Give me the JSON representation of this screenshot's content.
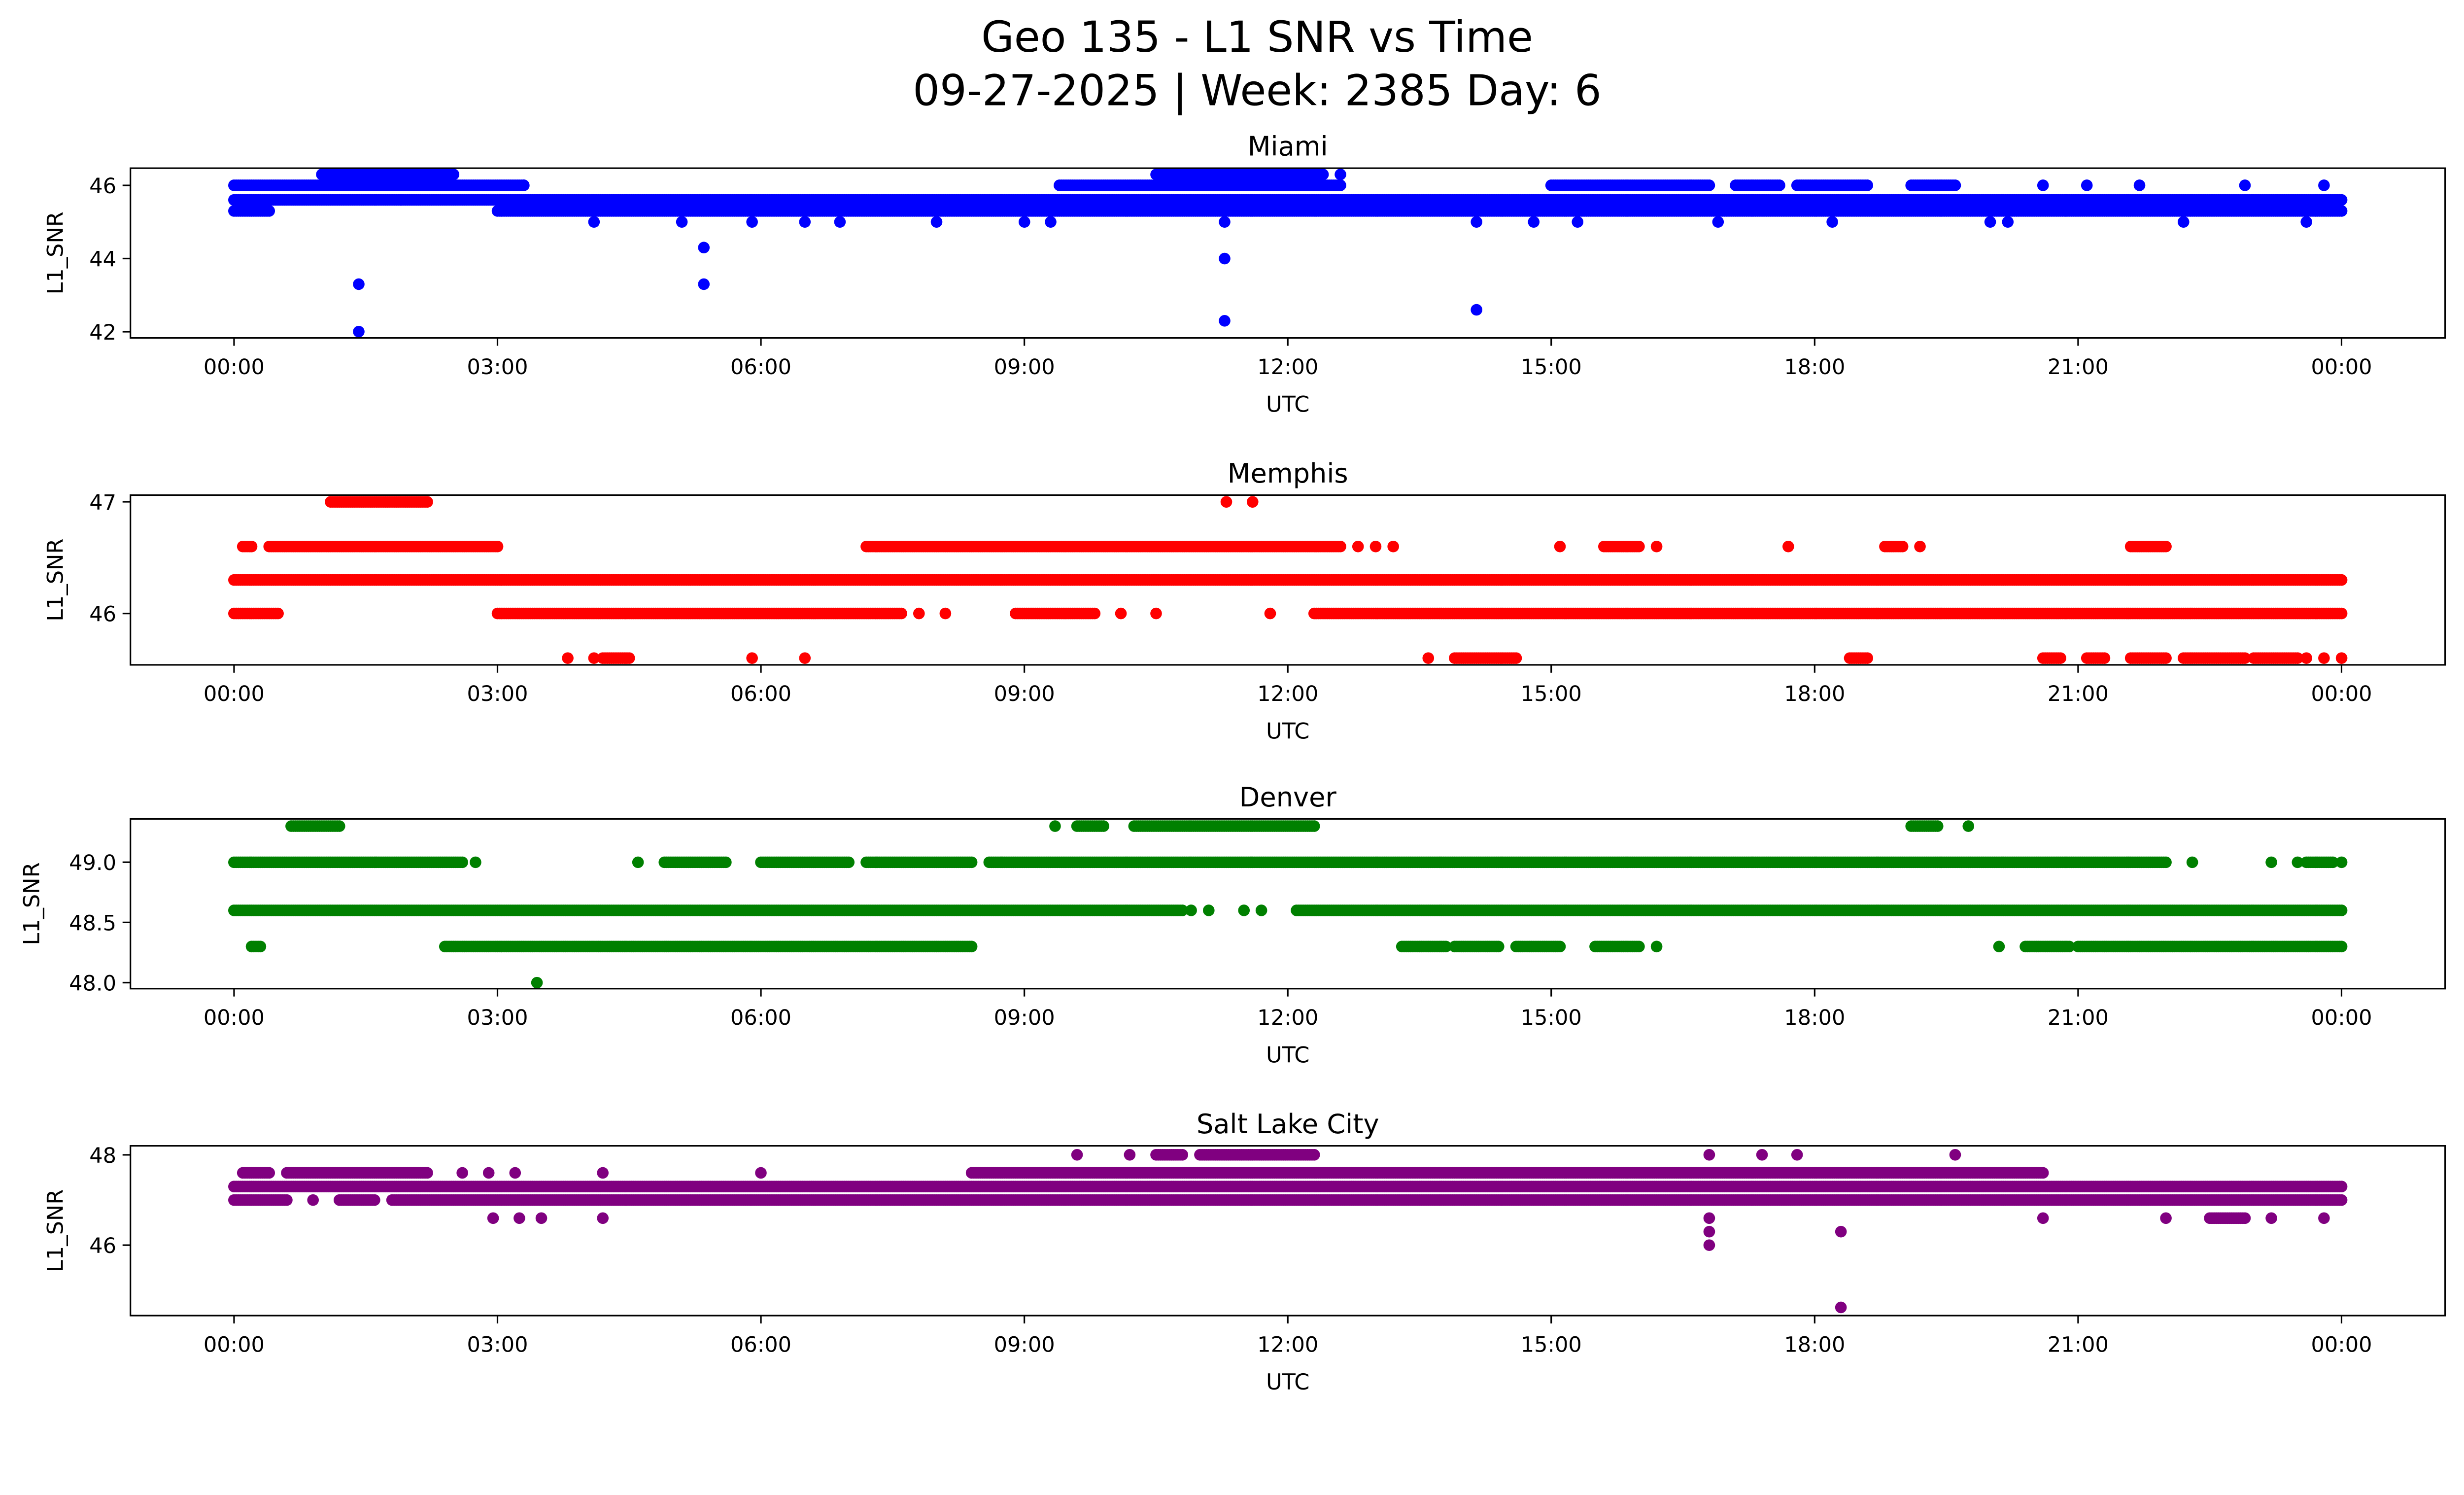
{
  "title_line1": "Geo 135 - L1 SNR vs Time",
  "title_line2": "09-27-2025 | Week: 2385 Day: 6",
  "chart_data": [
    {
      "type": "scatter",
      "title": "Miami",
      "xlabel": "UTC",
      "ylabel": "L1_SNR",
      "color": "#0000ff",
      "xlim_hours": [
        -1.18,
        25.18
      ],
      "ylim": [
        41.83,
        46.47
      ],
      "yticks": [
        42,
        44,
        46
      ],
      "ytick_labels": [
        "42",
        "44",
        "46"
      ],
      "xticks_hours": [
        0,
        3,
        6,
        9,
        12,
        15,
        18,
        21,
        24
      ],
      "xtick_labels": [
        "00:00",
        "03:00",
        "06:00",
        "09:00",
        "12:00",
        "15:00",
        "18:00",
        "21:00",
        "00:00"
      ],
      "runs": [
        [
          0,
          0.4,
          45.3
        ],
        [
          3.0,
          24,
          45.3
        ],
        [
          0,
          24,
          45.6
        ],
        [
          0,
          3.3,
          46.0
        ],
        [
          9.4,
          12.6,
          46.0
        ],
        [
          15.0,
          16.8,
          46.0
        ],
        [
          17.1,
          17.6,
          46.0
        ],
        [
          17.8,
          18.6,
          46.0
        ],
        [
          19.1,
          19.6,
          46.0
        ],
        [
          1.0,
          2.5,
          46.3
        ],
        [
          10.5,
          12.4,
          46.3
        ]
      ],
      "points": [
        [
          1.42,
          43.3
        ],
        [
          1.42,
          42.0
        ],
        [
          5.35,
          44.3
        ],
        [
          5.35,
          43.3
        ],
        [
          11.28,
          45.0
        ],
        [
          11.28,
          44.0
        ],
        [
          11.28,
          42.3
        ],
        [
          14.15,
          42.6
        ],
        [
          4.1,
          45.0
        ],
        [
          5.1,
          45.0
        ],
        [
          5.9,
          45.0
        ],
        [
          6.5,
          45.0
        ],
        [
          6.9,
          45.0
        ],
        [
          8.0,
          45.0
        ],
        [
          9.0,
          45.0
        ],
        [
          9.3,
          45.0
        ],
        [
          14.15,
          45.0
        ],
        [
          14.8,
          45.0
        ],
        [
          15.3,
          45.0
        ],
        [
          16.9,
          45.0
        ],
        [
          18.2,
          45.0
        ],
        [
          20.0,
          45.0
        ],
        [
          20.2,
          45.0
        ],
        [
          22.2,
          45.0
        ],
        [
          23.6,
          45.0
        ],
        [
          1.9,
          45.6
        ],
        [
          3.3,
          46.0
        ],
        [
          20.6,
          46.0
        ],
        [
          21.1,
          46.0
        ],
        [
          21.7,
          46.0
        ],
        [
          22.9,
          46.0
        ],
        [
          23.8,
          46.0
        ],
        [
          12.6,
          46.3
        ]
      ]
    },
    {
      "type": "scatter",
      "title": "Memphis",
      "xlabel": "UTC",
      "ylabel": "L1_SNR",
      "color": "#ff0000",
      "xlim_hours": [
        -1.18,
        25.18
      ],
      "ylim": [
        45.54,
        47.06
      ],
      "yticks": [
        46,
        47
      ],
      "ytick_labels": [
        "46",
        "47"
      ],
      "xticks_hours": [
        0,
        3,
        6,
        9,
        12,
        15,
        18,
        21,
        24
      ],
      "xtick_labels": [
        "00:00",
        "03:00",
        "06:00",
        "09:00",
        "12:00",
        "15:00",
        "18:00",
        "21:00",
        "00:00"
      ],
      "runs": [
        [
          1.1,
          2.2,
          47.0
        ],
        [
          0.1,
          0.2,
          46.6
        ],
        [
          0.4,
          3.0,
          46.6
        ],
        [
          7.2,
          12.6,
          46.6
        ],
        [
          15.6,
          16.0,
          46.6
        ],
        [
          18.8,
          19.0,
          46.6
        ],
        [
          21.6,
          22.0,
          46.6
        ],
        [
          0,
          24,
          46.3
        ],
        [
          0,
          0.5,
          46.0
        ],
        [
          3.0,
          7.6,
          46.0
        ],
        [
          8.9,
          9.8,
          46.0
        ],
        [
          12.3,
          24,
          46.0
        ],
        [
          4.2,
          4.5,
          45.6
        ],
        [
          13.9,
          14.6,
          45.6
        ],
        [
          18.4,
          18.6,
          45.6
        ],
        [
          20.6,
          20.8,
          45.6
        ],
        [
          21.1,
          21.3,
          45.6
        ],
        [
          21.6,
          22.0,
          45.6
        ],
        [
          22.2,
          22.9,
          45.6
        ],
        [
          23.0,
          23.5,
          45.6
        ]
      ],
      "points": [
        [
          11.3,
          47.0
        ],
        [
          11.6,
          47.0
        ],
        [
          12.8,
          46.6
        ],
        [
          13.0,
          46.6
        ],
        [
          13.2,
          46.6
        ],
        [
          15.1,
          46.6
        ],
        [
          16.2,
          46.6
        ],
        [
          17.7,
          46.6
        ],
        [
          19.2,
          46.6
        ],
        [
          7.8,
          46.0
        ],
        [
          8.1,
          46.0
        ],
        [
          10.1,
          46.0
        ],
        [
          10.5,
          46.0
        ],
        [
          11.8,
          46.0
        ],
        [
          3.8,
          45.6
        ],
        [
          4.1,
          45.6
        ],
        [
          5.9,
          45.6
        ],
        [
          6.5,
          45.6
        ],
        [
          13.6,
          45.6
        ],
        [
          23.6,
          45.6
        ],
        [
          23.8,
          45.6
        ],
        [
          24.0,
          45.6
        ]
      ]
    },
    {
      "type": "scatter",
      "title": "Denver",
      "xlabel": "UTC",
      "ylabel": "L1_SNR",
      "color": "#008000",
      "xlim_hours": [
        -1.18,
        25.18
      ],
      "ylim": [
        47.95,
        49.36
      ],
      "yticks": [
        48.0,
        48.5,
        49.0
      ],
      "ytick_labels": [
        "48.0",
        "48.5",
        "49.0"
      ],
      "xticks_hours": [
        0,
        3,
        6,
        9,
        12,
        15,
        18,
        21,
        24
      ],
      "xtick_labels": [
        "00:00",
        "03:00",
        "06:00",
        "09:00",
        "12:00",
        "15:00",
        "18:00",
        "21:00",
        "00:00"
      ],
      "runs": [
        [
          0.65,
          1.2,
          49.3
        ],
        [
          9.6,
          9.9,
          49.3
        ],
        [
          10.25,
          12.3,
          49.3
        ],
        [
          19.1,
          19.4,
          49.3
        ],
        [
          0,
          2.6,
          49.0
        ],
        [
          4.9,
          5.6,
          49.0
        ],
        [
          6.0,
          7.0,
          49.0
        ],
        [
          7.2,
          8.4,
          49.0
        ],
        [
          8.6,
          22.0,
          49.0
        ],
        [
          23.6,
          23.9,
          49.0
        ],
        [
          0,
          10.8,
          48.6
        ],
        [
          12.1,
          24,
          48.6
        ],
        [
          0.2,
          0.3,
          48.3
        ],
        [
          2.4,
          8.4,
          48.3
        ],
        [
          13.3,
          13.8,
          48.3
        ],
        [
          13.9,
          14.4,
          48.3
        ],
        [
          14.6,
          15.1,
          48.3
        ],
        [
          15.5,
          16.0,
          48.3
        ],
        [
          20.4,
          20.9,
          48.3
        ],
        [
          21.0,
          24,
          48.3
        ]
      ],
      "points": [
        [
          9.35,
          49.3
        ],
        [
          19.75,
          49.3
        ],
        [
          2.75,
          49.0
        ],
        [
          4.6,
          49.0
        ],
        [
          22.3,
          49.0
        ],
        [
          23.2,
          49.0
        ],
        [
          23.5,
          49.0
        ],
        [
          24.0,
          49.0
        ],
        [
          10.9,
          48.6
        ],
        [
          11.1,
          48.6
        ],
        [
          11.5,
          48.6
        ],
        [
          11.7,
          48.6
        ],
        [
          16.2,
          48.3
        ],
        [
          20.1,
          48.3
        ],
        [
          3.45,
          48.0
        ]
      ]
    },
    {
      "type": "scatter",
      "title": "Salt Lake City",
      "xlabel": "UTC",
      "ylabel": "L1_SNR",
      "color": "#800080",
      "xlim_hours": [
        -1.18,
        25.18
      ],
      "ylim": [
        44.44,
        48.2
      ],
      "yticks": [
        46,
        48
      ],
      "ytick_labels": [
        "46",
        "48"
      ],
      "xticks_hours": [
        0,
        3,
        6,
        9,
        12,
        15,
        18,
        21,
        24
      ],
      "xtick_labels": [
        "00:00",
        "03:00",
        "06:00",
        "09:00",
        "12:00",
        "15:00",
        "18:00",
        "21:00",
        "00:00"
      ],
      "runs": [
        [
          10.5,
          10.8,
          48.0
        ],
        [
          11.0,
          12.3,
          48.0
        ],
        [
          0.1,
          0.4,
          47.6
        ],
        [
          0.6,
          2.2,
          47.6
        ],
        [
          8.4,
          20.6,
          47.6
        ],
        [
          0,
          24,
          47.3
        ],
        [
          0,
          0.6,
          47.0
        ],
        [
          1.2,
          1.6,
          47.0
        ],
        [
          1.8,
          24,
          47.0
        ],
        [
          22.5,
          22.9,
          46.6
        ]
      ],
      "points": [
        [
          9.6,
          48.0
        ],
        [
          10.2,
          48.0
        ],
        [
          16.8,
          48.0
        ],
        [
          17.4,
          48.0
        ],
        [
          17.8,
          48.0
        ],
        [
          19.6,
          48.0
        ],
        [
          2.6,
          47.6
        ],
        [
          2.9,
          47.6
        ],
        [
          3.2,
          47.6
        ],
        [
          4.2,
          47.6
        ],
        [
          6.0,
          47.6
        ],
        [
          0.9,
          47.0
        ],
        [
          2.95,
          46.6
        ],
        [
          3.25,
          46.6
        ],
        [
          3.5,
          46.6
        ],
        [
          4.2,
          46.6
        ],
        [
          20.6,
          46.6
        ],
        [
          22.0,
          46.6
        ],
        [
          23.2,
          46.6
        ],
        [
          23.8,
          46.6
        ],
        [
          16.8,
          46.6
        ],
        [
          16.8,
          46.3
        ],
        [
          16.8,
          46.0
        ],
        [
          18.3,
          46.3
        ],
        [
          18.3,
          44.62
        ]
      ]
    }
  ]
}
